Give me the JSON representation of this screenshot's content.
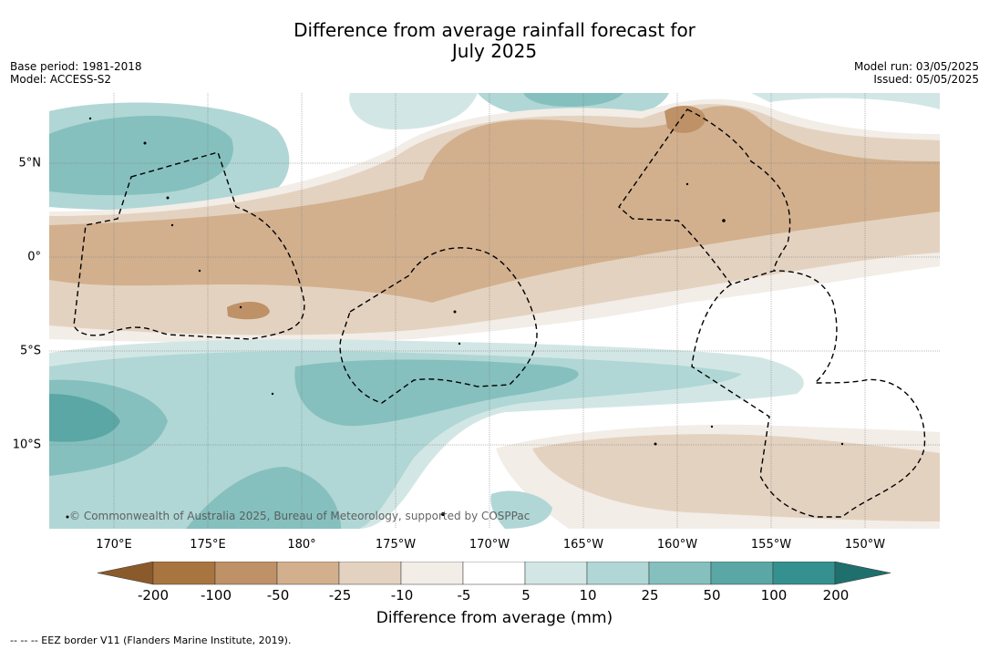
{
  "header": {
    "title_line1": "Difference from average rainfall forecast for",
    "title_line2": "July 2025",
    "base_period": "Base period: 1981-2018",
    "model": "Model: ACCESS-S2",
    "model_run": "Model run: 03/05/2025",
    "issued": "Issued: 05/05/2025"
  },
  "map": {
    "latitude_labels": [
      "5°N",
      "0°",
      "5°S",
      "10°S"
    ],
    "longitude_labels": [
      "170°E",
      "175°E",
      "180°",
      "175°W",
      "170°W",
      "165°W",
      "160°W",
      "155°W",
      "150°W"
    ],
    "copyright": "© Commonwealth of Australia 2025, Bureau of Meteorology, supported by COSPPac"
  },
  "colorbar": {
    "ticks": [
      "-200",
      "-100",
      "-50",
      "-25",
      "-10",
      "-5",
      "5",
      "10",
      "25",
      "50",
      "100",
      "200"
    ],
    "colors": [
      "#8b5a2b",
      "#a87540",
      "#bf9167",
      "#d2b08e",
      "#e4d2c0",
      "#f2ede7",
      "#ffffff",
      "#d2e7e5",
      "#b0d7d5",
      "#85c0be",
      "#5aa7a5",
      "#35918f",
      "#1f6f6c"
    ],
    "label": "Difference from average (mm)"
  },
  "footer": {
    "eez_note": "--  --  -- EEZ border V11 (Flanders Marine Institute, 2019)."
  }
}
